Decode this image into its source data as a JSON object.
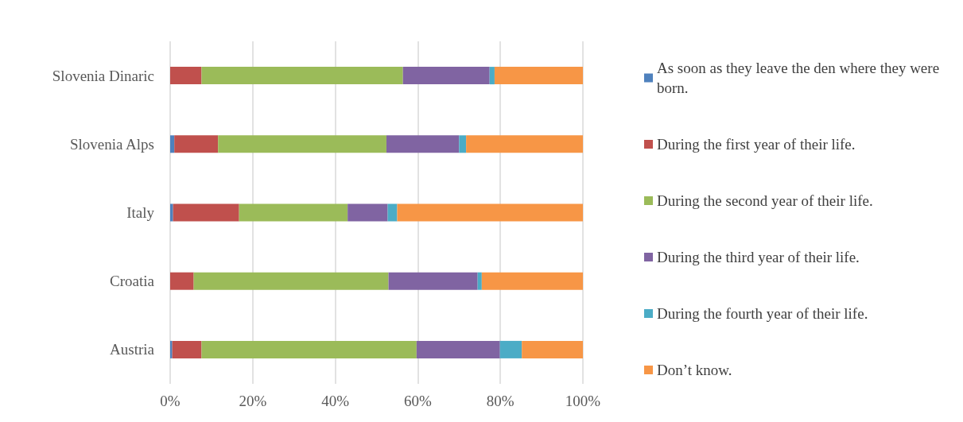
{
  "chart_data": {
    "type": "bar",
    "orientation": "horizontal",
    "stacked": true,
    "categories": [
      "Slovenia Dinaric",
      "Slovenia Alps",
      "Italy",
      "Croatia",
      "Austria"
    ],
    "series": [
      {
        "name": "As soon as they leave the den where they were born.",
        "color": "#4f81bd",
        "values": [
          0,
          1.0,
          0.7,
          0,
          0.5
        ]
      },
      {
        "name": "During the first year of their life.",
        "color": "#c0504d",
        "values": [
          7.6,
          10.6,
          16.0,
          5.7,
          7.1
        ]
      },
      {
        "name": "During the second year of their life.",
        "color": "#9bbb59",
        "values": [
          48.8,
          40.8,
          26.3,
          47.2,
          52.1
        ]
      },
      {
        "name": "During the third year of their life.",
        "color": "#8064a2",
        "values": [
          21.0,
          17.6,
          9.7,
          21.6,
          20.2
        ]
      },
      {
        "name": "During the fourth year of their life.",
        "color": "#4bacc6",
        "values": [
          1.2,
          1.7,
          2.3,
          1.0,
          5.3
        ]
      },
      {
        "name": "Don’t know.",
        "color": "#f79646",
        "values": [
          21.4,
          28.3,
          45.0,
          24.5,
          14.8
        ]
      }
    ],
    "xlim": [
      0,
      100
    ],
    "xticks": [
      {
        "value": 0,
        "label": "0%"
      },
      {
        "value": 20,
        "label": "20%"
      },
      {
        "value": 40,
        "label": "40%"
      },
      {
        "value": 60,
        "label": "60%"
      },
      {
        "value": 80,
        "label": "80%"
      },
      {
        "value": 100,
        "label": "100%"
      }
    ],
    "grid": "x",
    "legend": "right"
  }
}
